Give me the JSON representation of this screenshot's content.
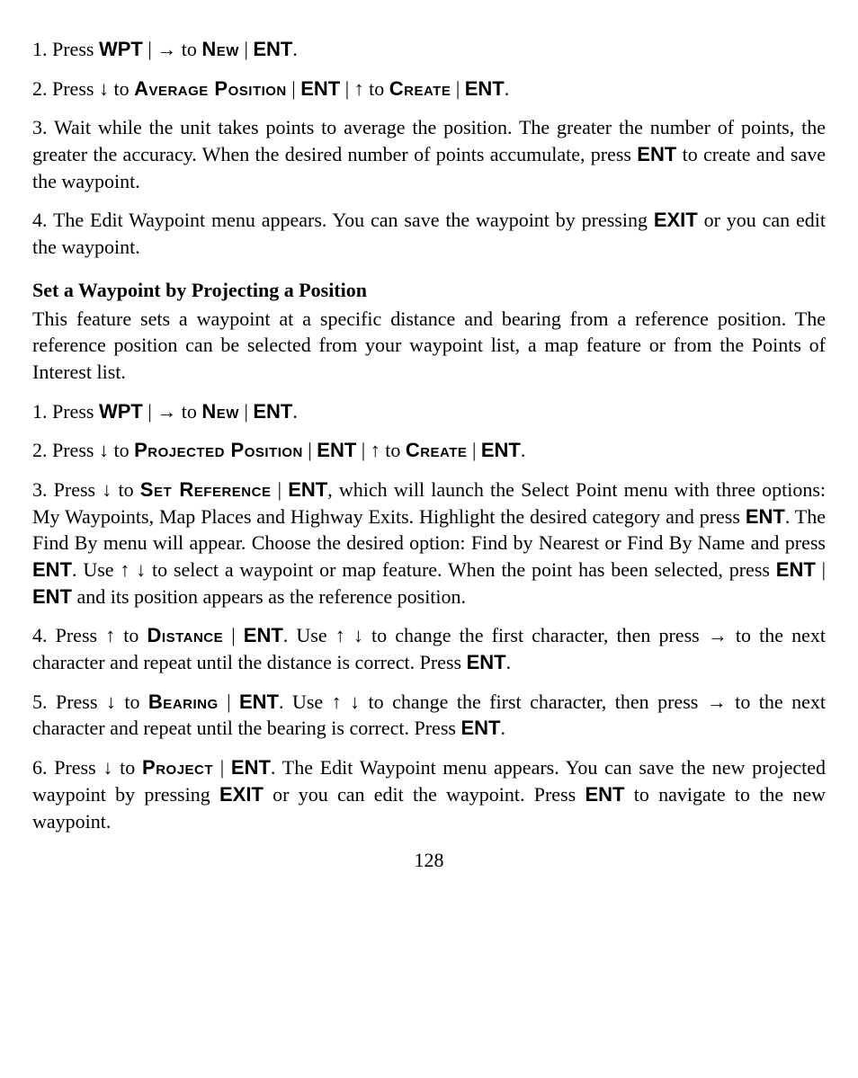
{
  "keys": {
    "wpt": "WPT",
    "ent": "ENT",
    "exit": "EXIT"
  },
  "menus": {
    "new": "New",
    "average_position": "Average Position",
    "create": "Create",
    "projected_position": "Projected Position",
    "set_reference": "Set Reference",
    "distance": "Distance",
    "bearing": "Bearing",
    "project": "Project"
  },
  "arrows": {
    "right": "→",
    "down": "↓",
    "up": "↑"
  },
  "text": {
    "press": "Press ",
    "to_sp": " to ",
    "pipe": " | ",
    "period": ".",
    "comma": ", ",
    "step1_num": "1. ",
    "step2_num": "2. ",
    "step3_num": "3. ",
    "step4_num": "4. ",
    "step5_num": "5. ",
    "step6_num": "6. ",
    "avg3_a": "Wait while the unit takes points to average the position. The greater the number of points, the greater the accuracy. When the desired number of points accumulate, press ",
    "avg3_b": " to create and save the waypoint.",
    "avg4_a": "The Edit Waypoint menu appears. You can save the waypoint by pressing ",
    "avg4_b": " or you can edit the waypoint.",
    "heading": "Set a Waypoint by Projecting a Position",
    "intro": "This feature sets a waypoint at a specific distance and bearing from a reference position. The reference position can be selected from your waypoint list, a map feature or from the Points of Interest list.",
    "proj3_a": ", which will launch the Select Point menu with three options: My Waypoints, Map Places and Highway Exits. Highlight the desired category and press ",
    "proj3_b": ". The Find By menu will appear. Choose the desired option: Find by Nearest or Find By Name and press ",
    "proj3_c": ". Use ",
    "proj3_d": " to select a waypoint or map feature. When the point has been selected, press ",
    "proj3_e": " and its position appears as the reference position.",
    "proj4_a": ". Use ",
    "proj4_b": " to change the first character, then press ",
    "proj4_c": " to the next character and repeat until the distance is correct. Press ",
    "proj5_c": " to the next character and repeat until the bearing is correct. Press ",
    "proj6_a": ". The Edit Waypoint menu appears. You can save the new projected waypoint by pressing ",
    "proj6_b": " or you can edit the waypoint. Press ",
    "proj6_c": " to navigate to the new waypoint."
  },
  "page_number": "128"
}
